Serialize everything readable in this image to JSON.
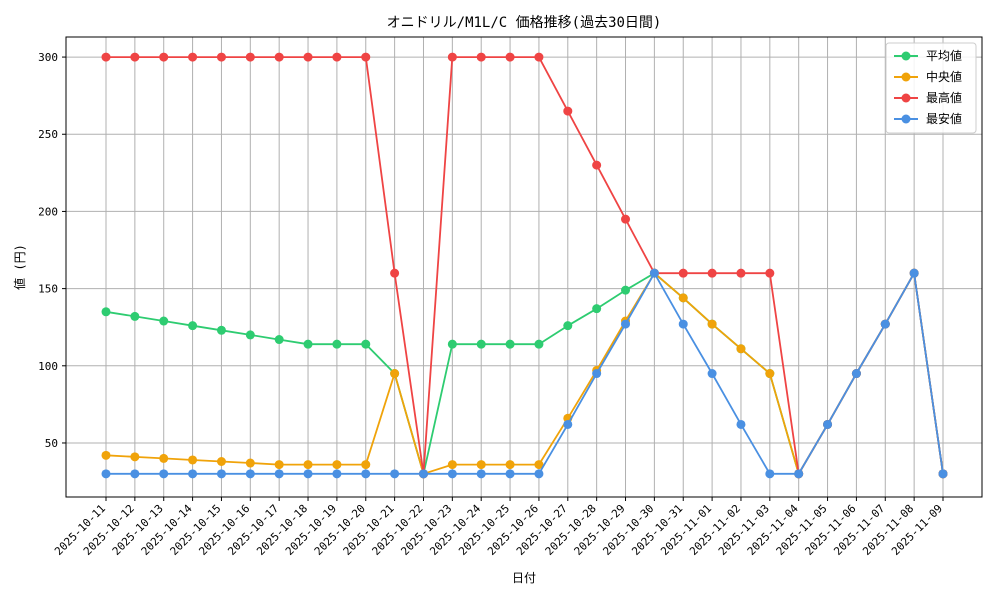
{
  "chart_data": {
    "type": "line",
    "title": "オニドリル/M1L/C 価格推移(過去30日間)",
    "xlabel": "日付",
    "ylabel": "値 (円)",
    "ylim": [
      15,
      313
    ],
    "yticks": [
      50,
      100,
      150,
      200,
      250,
      300
    ],
    "grid": true,
    "legend_position": "top-right",
    "categories": [
      "2025-10-11",
      "2025-10-12",
      "2025-10-13",
      "2025-10-14",
      "2025-10-15",
      "2025-10-16",
      "2025-10-17",
      "2025-10-18",
      "2025-10-19",
      "2025-10-20",
      "2025-10-21",
      "2025-10-22",
      "2025-10-23",
      "2025-10-24",
      "2025-10-25",
      "2025-10-26",
      "2025-10-27",
      "2025-10-28",
      "2025-10-29",
      "2025-10-30",
      "2025-10-31",
      "2025-11-01",
      "2025-11-02",
      "2025-11-03",
      "2025-11-04",
      "2025-11-05",
      "2025-11-06",
      "2025-11-07",
      "2025-11-08",
      "2025-11-09"
    ],
    "series": [
      {
        "name": "平均値",
        "color": "#2ecc71",
        "values": [
          135,
          132,
          129,
          126,
          123,
          120,
          117,
          114,
          114,
          114,
          95,
          30,
          114,
          114,
          114,
          114,
          126,
          137,
          149,
          160,
          144,
          127,
          111,
          95,
          30,
          62,
          95,
          127,
          160,
          30
        ]
      },
      {
        "name": "中央値",
        "color": "#f0a30a",
        "values": [
          42,
          41,
          40,
          39,
          38,
          37,
          36,
          36,
          36,
          36,
          95,
          30,
          36,
          36,
          36,
          36,
          66,
          97,
          129,
          160,
          144,
          127,
          111,
          95,
          30,
          62,
          95,
          127,
          160,
          30
        ]
      },
      {
        "name": "最高値",
        "color": "#ef4444",
        "values": [
          300,
          300,
          300,
          300,
          300,
          300,
          300,
          300,
          300,
          300,
          160,
          30,
          300,
          300,
          300,
          300,
          265,
          230,
          195,
          160,
          160,
          160,
          160,
          160,
          30,
          62,
          95,
          127,
          160,
          30
        ]
      },
      {
        "name": "最安値",
        "color": "#4a90e2",
        "values": [
          30,
          30,
          30,
          30,
          30,
          30,
          30,
          30,
          30,
          30,
          30,
          30,
          30,
          30,
          30,
          30,
          62,
          95,
          127,
          160,
          127,
          95,
          62,
          30,
          30,
          62,
          95,
          127,
          160,
          30
        ]
      }
    ]
  }
}
